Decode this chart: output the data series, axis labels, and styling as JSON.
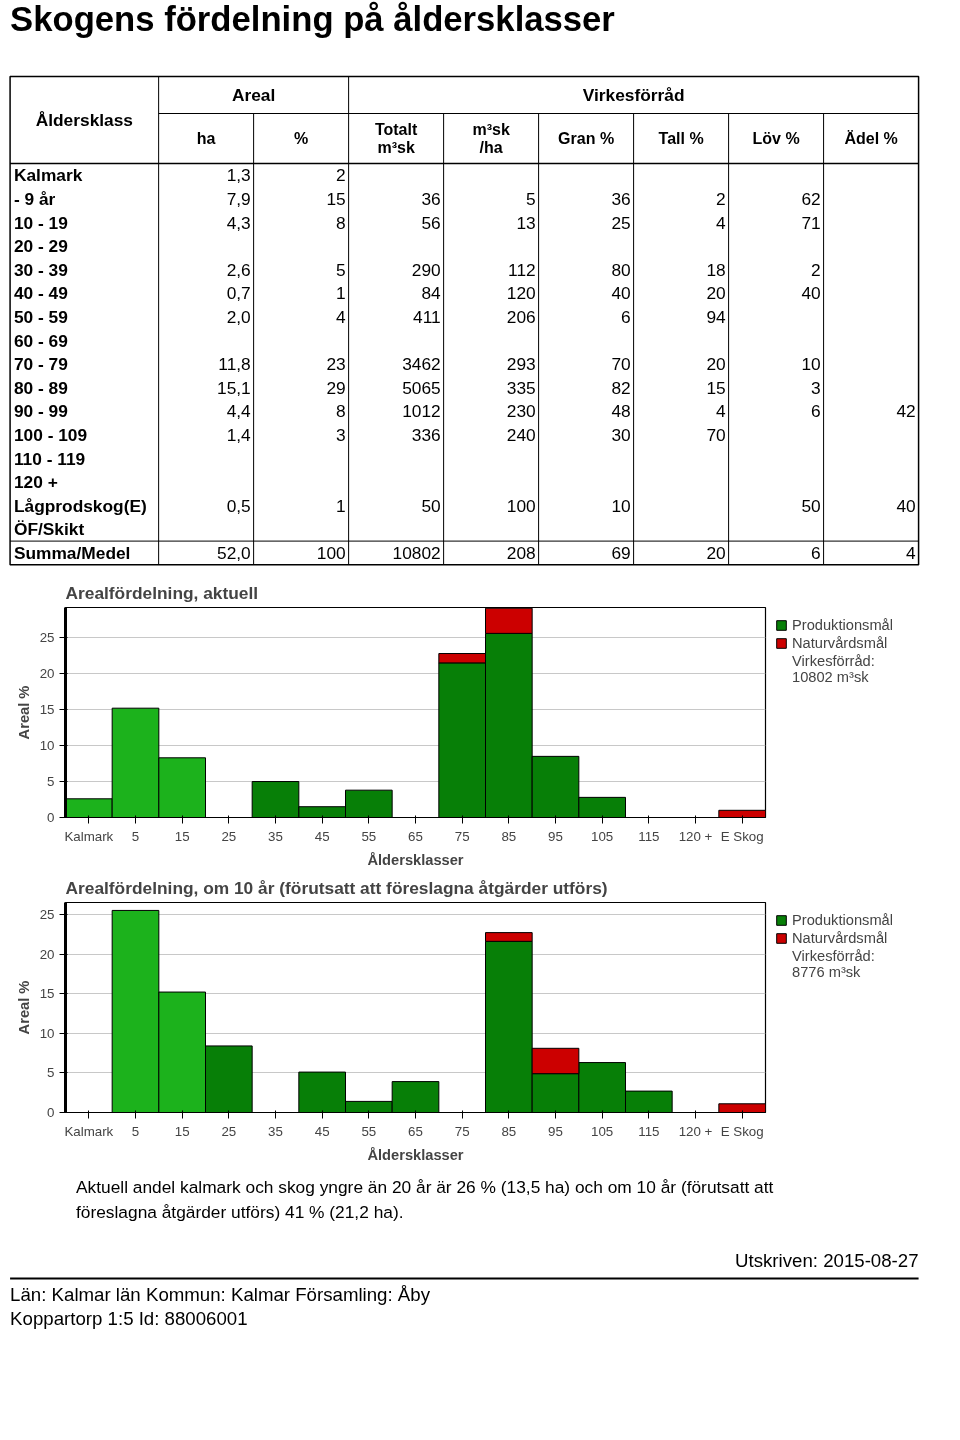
{
  "chart_data": [
    {
      "type": "heatmap",
      "title": "Skogens fördelning på åldersklasser",
      "ylabel": "Åldersklass",
      "annotations": [
        "Areal",
        "Virkesförråd"
      ],
      "categories": [
        "ha",
        "%",
        "Totalt\nm³sk",
        "m³sk\n/ha",
        "Gran %",
        "Tall %",
        "Löv %",
        "Ädel %"
      ],
      "y_categories": [
        "Kalmark",
        "- 9 år",
        "10 - 19",
        "20 - 29",
        "30 - 39",
        "40 - 49",
        "50 - 59",
        "60 - 69",
        "70 - 79",
        "80 - 89",
        "90 - 99",
        "100 - 109",
        "110 - 119",
        "120 +",
        "Lågprodskog(E)",
        "ÖF/Skikt",
        "Summa/Medel"
      ],
      "cells": [
        [
          1.3,
          2,
          null,
          null,
          null,
          null,
          null,
          null
        ],
        [
          7.9,
          15,
          36,
          5,
          36,
          2,
          62,
          null
        ],
        [
          4.3,
          8,
          56,
          13,
          25,
          4,
          71,
          null
        ],
        [
          null,
          null,
          null,
          null,
          null,
          null,
          null,
          null
        ],
        [
          2.6,
          5,
          290,
          112,
          80,
          18,
          2,
          null
        ],
        [
          0.7,
          1,
          84,
          120,
          40,
          20,
          40,
          null
        ],
        [
          2.0,
          4,
          411,
          206,
          6,
          94,
          null,
          null
        ],
        [
          null,
          null,
          null,
          null,
          null,
          null,
          null,
          null
        ],
        [
          11.8,
          23,
          3462,
          293,
          70,
          20,
          10,
          null
        ],
        [
          15.1,
          29,
          5065,
          335,
          82,
          15,
          3,
          null
        ],
        [
          4.4,
          8,
          1012,
          230,
          48,
          4,
          6,
          42
        ],
        [
          1.4,
          3,
          336,
          240,
          30,
          70,
          null,
          null
        ],
        [
          null,
          null,
          null,
          null,
          null,
          null,
          null,
          null
        ],
        [
          null,
          null,
          null,
          null,
          null,
          null,
          null,
          null
        ],
        [
          0.5,
          1,
          50,
          100,
          10,
          null,
          50,
          40
        ],
        [
          null,
          null,
          null,
          null,
          null,
          null,
          null,
          null
        ],
        [
          52.0,
          100,
          10802,
          208,
          69,
          20,
          6,
          4
        ]
      ],
      "cell_labels": [
        [
          "1,3",
          "2",
          null,
          null,
          null,
          null,
          null,
          null
        ],
        [
          "7,9",
          "15",
          "36",
          "5",
          "36",
          "2",
          "62",
          null
        ],
        [
          "4,3",
          "8",
          "56",
          "13",
          "25",
          "4",
          "71",
          null
        ],
        [
          null,
          null,
          null,
          null,
          null,
          null,
          null,
          null
        ],
        [
          "2,6",
          "5",
          "290",
          "112",
          "80",
          "18",
          "2",
          null
        ],
        [
          "0,7",
          "1",
          "84",
          "120",
          "40",
          "20",
          "40",
          null
        ],
        [
          "2,0",
          "4",
          "411",
          "206",
          "6",
          "94",
          null,
          null
        ],
        [
          null,
          null,
          null,
          null,
          null,
          null,
          null,
          null
        ],
        [
          "11,8",
          "23",
          "3462",
          "293",
          "70",
          "20",
          "10",
          null
        ],
        [
          "15,1",
          "29",
          "5065",
          "335",
          "82",
          "15",
          "3",
          null
        ],
        [
          "4,4",
          "8",
          "1012",
          "230",
          "48",
          "4",
          "6",
          "42"
        ],
        [
          "1,4",
          "3",
          "336",
          "240",
          "30",
          "70",
          null,
          null
        ],
        [
          null,
          null,
          null,
          null,
          null,
          null,
          null,
          null
        ],
        [
          null,
          null,
          null,
          null,
          null,
          null,
          null,
          null
        ],
        [
          "0,5",
          "1",
          "50",
          "100",
          "10",
          null,
          "50",
          "40"
        ],
        [
          null,
          null,
          null,
          null,
          null,
          null,
          null,
          null
        ],
        [
          "52,0",
          "100",
          "10802",
          "208",
          "69",
          "20",
          "6",
          "4"
        ]
      ]
    },
    {
      "type": "bar",
      "stacked": true,
      "title": "Arealfördelning, aktuell",
      "xlabel": "Åldersklasser",
      "ylabel": "Areal %",
      "legend": "top right",
      "grid": "y",
      "ylim": [
        0,
        29.2
      ],
      "yticks": [
        0,
        5,
        10,
        15,
        20,
        25
      ],
      "annotations": [
        "Virkesförråd:\n10802 m³sk"
      ],
      "categories": [
        "Kalmark",
        "5",
        "15",
        "25",
        "35",
        "45",
        "55",
        "65",
        "75",
        "85",
        "95",
        "105",
        "115",
        "120 +",
        "E Skog"
      ],
      "series": [
        {
          "name": "Produktionsmål",
          "color": "#077f07",
          "colors": [
            "#1cb21c",
            "#1cb21c",
            "#1cb21c",
            "#077f07",
            "#077f07",
            "#077f07",
            "#077f07",
            "#077f07",
            "#077f07",
            "#077f07",
            "#077f07",
            "#077f07",
            "#077f07",
            "#077f07",
            "#077f07"
          ],
          "values": [
            2.6,
            15.2,
            8.3,
            null,
            5.0,
            1.5,
            3.8,
            null,
            21.5,
            25.6,
            8.5,
            2.8,
            null,
            null,
            null
          ]
        },
        {
          "name": "Naturvårdsmål",
          "color": "#cc0000",
          "values": [
            null,
            null,
            null,
            null,
            null,
            null,
            null,
            null,
            1.3,
            3.5,
            null,
            null,
            null,
            null,
            1.0
          ]
        }
      ]
    },
    {
      "type": "bar",
      "stacked": true,
      "title": "Arealfördelning, om 10 år (förutsatt att föreslagna åtgärder utförs)",
      "xlabel": "Åldersklasser",
      "ylabel": "Areal %",
      "legend": "top right",
      "grid": "y",
      "ylim": [
        0,
        26.5
      ],
      "yticks": [
        0,
        5,
        10,
        15,
        20,
        25
      ],
      "annotations": [
        "Virkesförråd:\n8776 m³sk",
        "Aktuell andel kalmark och skog yngre än 20 år är 26 % (13,5 ha) och om 10 år (förutsatt att föreslagna åtgärder utförs) 41 % (21,2 ha)."
      ],
      "categories": [
        "Kalmark",
        "5",
        "15",
        "25",
        "35",
        "45",
        "55",
        "65",
        "75",
        "85",
        "95",
        "105",
        "115",
        "120 +",
        "E Skog"
      ],
      "series": [
        {
          "name": "Produktionsmål",
          "color": "#077f07",
          "colors": [
            "#1cb21c",
            "#1cb21c",
            "#1cb21c",
            "#077f07",
            "#077f07",
            "#077f07",
            "#077f07",
            "#077f07",
            "#077f07",
            "#077f07",
            "#077f07",
            "#077f07",
            "#077f07",
            "#077f07",
            "#077f07"
          ],
          "values": [
            null,
            25.5,
            15.2,
            8.4,
            null,
            5.1,
            1.4,
            3.9,
            null,
            21.6,
            4.9,
            6.3,
            2.7,
            null,
            null
          ]
        },
        {
          "name": "Naturvårdsmål",
          "color": "#cc0000",
          "values": [
            null,
            null,
            null,
            null,
            null,
            null,
            null,
            null,
            null,
            1.1,
            3.2,
            null,
            null,
            null,
            1.1
          ]
        }
      ]
    },
    {
      "type": "other",
      "annotations": [
        "Utskriven: 2015-08-27",
        "Län: Kalmar län   Kommun: Kalmar   Församling: Åby",
        "Koppartorp 1:5 Id: 88006001"
      ]
    }
  ]
}
